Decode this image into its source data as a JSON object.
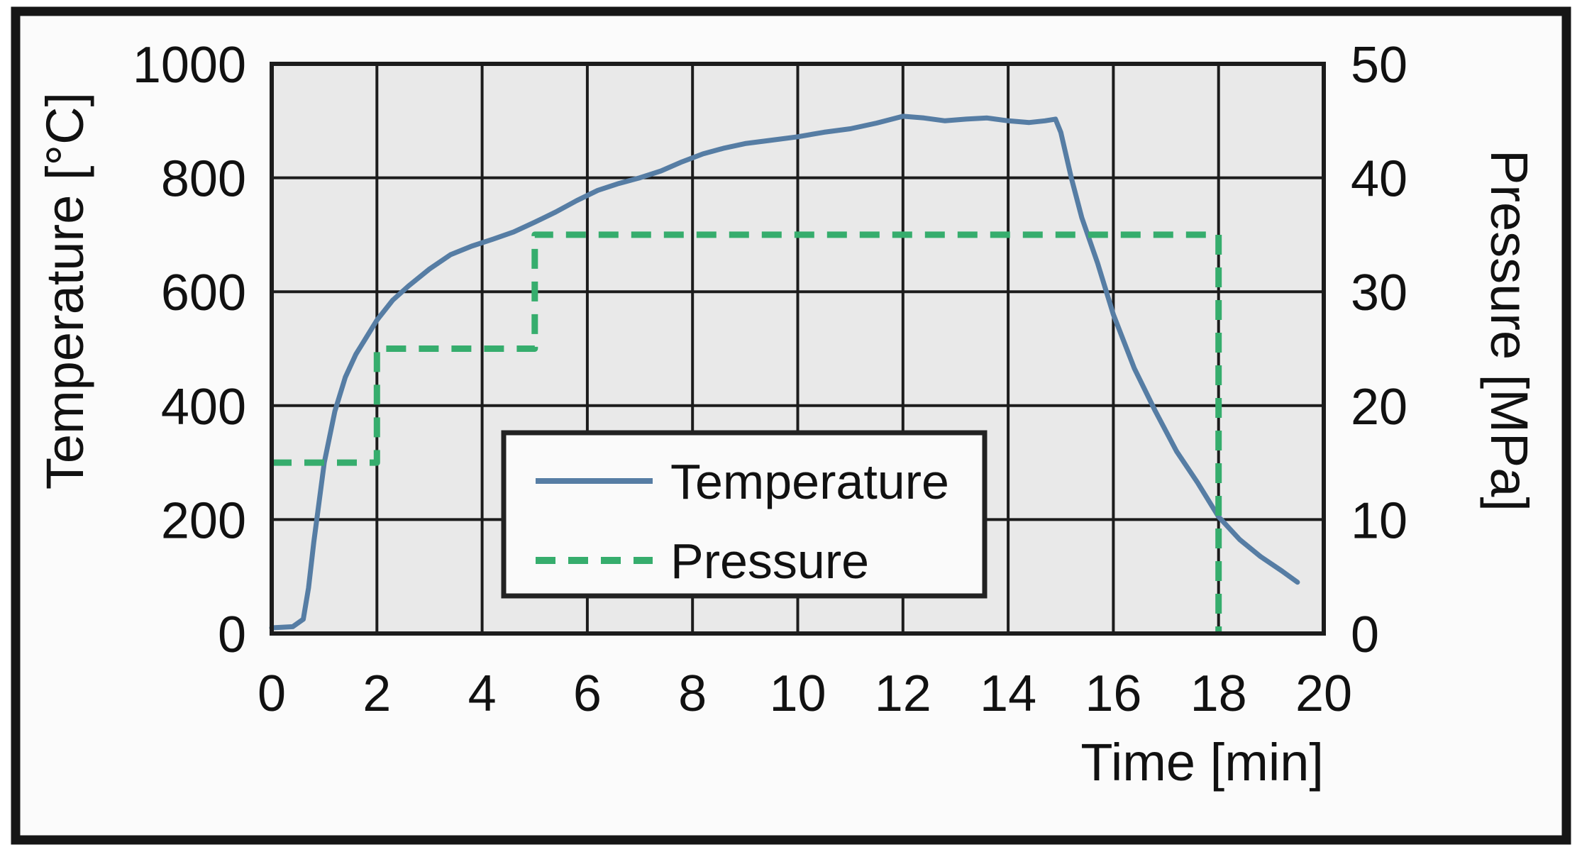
{
  "figure": {
    "background": "#fbfbfb",
    "plot_background": "#e9e9e9",
    "border_color": "#161616",
    "grid_color": "#1c1c1c",
    "text_color": "#111111",
    "legend_background": "#fafafa"
  },
  "chart_data": {
    "type": "line",
    "title": "",
    "xlabel": "Time [min]",
    "ylabel_left": "Temperature [°C]",
    "ylabel_right": "Pressure [MPa]",
    "xlim": [
      0,
      20
    ],
    "xticks": [
      0,
      2,
      4,
      6,
      8,
      10,
      12,
      14,
      16,
      18,
      20
    ],
    "ylim_left": [
      0,
      1000
    ],
    "yticks_left": [
      0,
      200,
      400,
      600,
      800,
      1000
    ],
    "ylim_right": [
      0,
      50
    ],
    "yticks_right": [
      0,
      10,
      20,
      30,
      40,
      50
    ],
    "grid": true,
    "legend_position": "center",
    "legend_entries": [
      "Temperature",
      "Pressure"
    ],
    "series": [
      {
        "name": "Temperature",
        "axis": "left",
        "style": "solid",
        "color": "#567da4",
        "width": 7,
        "points": [
          [
            0,
            10
          ],
          [
            0.4,
            12
          ],
          [
            0.6,
            25
          ],
          [
            0.7,
            80
          ],
          [
            0.8,
            160
          ],
          [
            0.9,
            230
          ],
          [
            1.0,
            300
          ],
          [
            1.2,
            390
          ],
          [
            1.4,
            450
          ],
          [
            1.6,
            490
          ],
          [
            1.8,
            520
          ],
          [
            2.0,
            550
          ],
          [
            2.3,
            585
          ],
          [
            2.6,
            610
          ],
          [
            3.0,
            640
          ],
          [
            3.4,
            665
          ],
          [
            3.8,
            680
          ],
          [
            4.2,
            692
          ],
          [
            4.6,
            705
          ],
          [
            5.0,
            722
          ],
          [
            5.4,
            740
          ],
          [
            5.8,
            760
          ],
          [
            6.2,
            778
          ],
          [
            6.6,
            790
          ],
          [
            7.0,
            800
          ],
          [
            7.4,
            812
          ],
          [
            7.8,
            828
          ],
          [
            8.2,
            842
          ],
          [
            8.6,
            852
          ],
          [
            9.0,
            860
          ],
          [
            9.5,
            866
          ],
          [
            10.0,
            872
          ],
          [
            10.5,
            880
          ],
          [
            11.0,
            886
          ],
          [
            11.5,
            896
          ],
          [
            12.0,
            908
          ],
          [
            12.4,
            905
          ],
          [
            12.8,
            900
          ],
          [
            13.2,
            903
          ],
          [
            13.6,
            905
          ],
          [
            14.0,
            900
          ],
          [
            14.4,
            897
          ],
          [
            14.7,
            900
          ],
          [
            14.9,
            903
          ],
          [
            15.0,
            880
          ],
          [
            15.2,
            800
          ],
          [
            15.4,
            730
          ],
          [
            15.7,
            650
          ],
          [
            16.0,
            560
          ],
          [
            16.4,
            465
          ],
          [
            16.8,
            390
          ],
          [
            17.2,
            320
          ],
          [
            17.6,
            265
          ],
          [
            18.0,
            205
          ],
          [
            18.4,
            165
          ],
          [
            18.8,
            135
          ],
          [
            19.2,
            110
          ],
          [
            19.5,
            90
          ]
        ]
      },
      {
        "name": "Pressure",
        "axis": "right",
        "style": "dashed",
        "color": "#36ad6d",
        "width": 9,
        "dash": "28 18",
        "points": [
          [
            0,
            15
          ],
          [
            2,
            15
          ],
          [
            2,
            25
          ],
          [
            5,
            25
          ],
          [
            5,
            35
          ],
          [
            18,
            35
          ],
          [
            18,
            0
          ]
        ]
      }
    ]
  }
}
